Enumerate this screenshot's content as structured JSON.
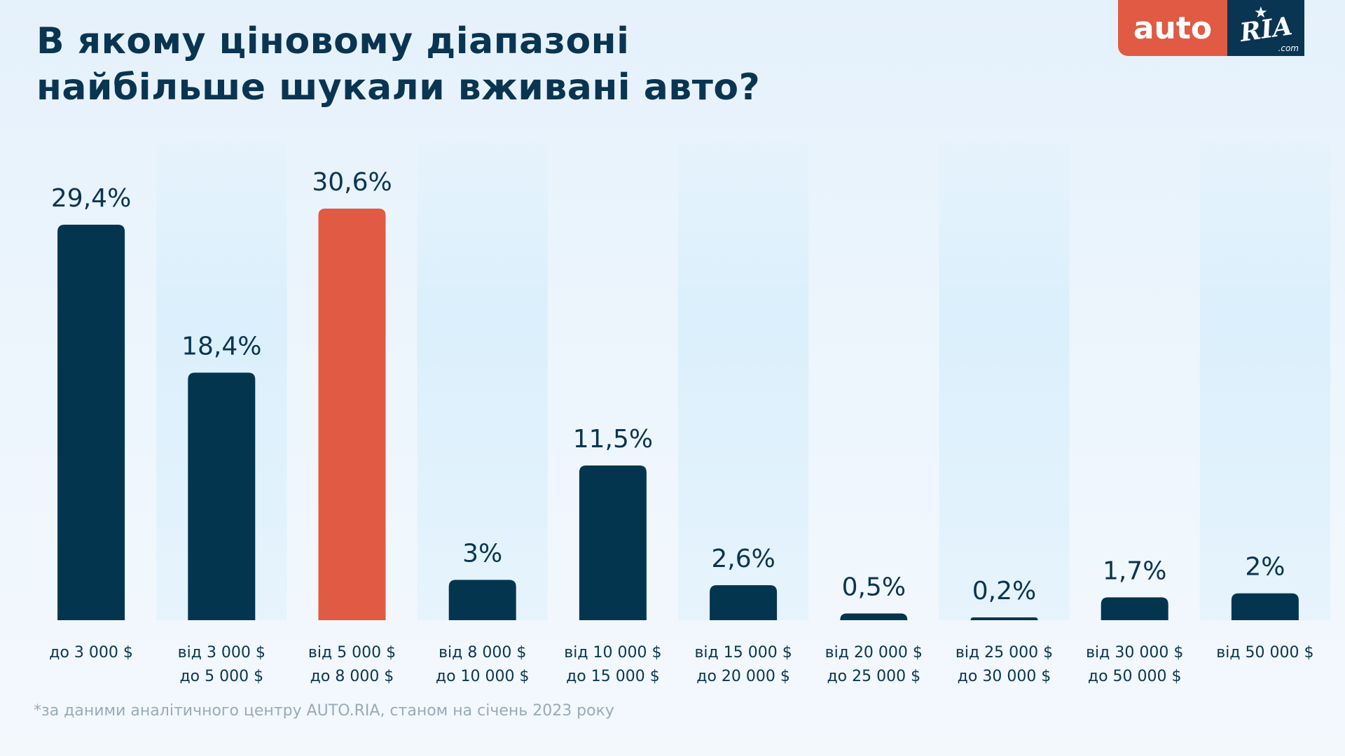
{
  "header": {
    "title_line1": "В якому ціновому діапазоні",
    "title_line2": "найбільше шукали вживані авто?"
  },
  "logo": {
    "auto_text": "auto",
    "ria_text": "RIA",
    "ria_suffix": ".com",
    "auto_color": "#e05a44",
    "ria_color": "#0a3552"
  },
  "footnote": "*за даними аналітичного центру AUTO.RIA, станом на січень 2023 року",
  "colors": {
    "bar": "#03354f",
    "highlight": "#e05a44",
    "text": "#0a3552",
    "band": "#d9effc"
  },
  "chart_data": {
    "type": "bar",
    "title": "В якому ціновому діапазоні найбільше шукали вживані авто?",
    "xlabel": "",
    "ylabel": "",
    "ylim": [
      0,
      30.6
    ],
    "grid": false,
    "legend": "none",
    "highlight_index": 2,
    "categories": [
      [
        "до 3 000 $"
      ],
      [
        "від 3 000 $",
        "до 5 000 $"
      ],
      [
        "від 5 000 $",
        "до 8 000 $"
      ],
      [
        "від 8 000 $",
        "до 10 000 $"
      ],
      [
        "від 10 000 $",
        "до 15 000 $"
      ],
      [
        "від 15 000 $",
        "до 20 000 $"
      ],
      [
        "від 20 000 $",
        "до 25 000 $"
      ],
      [
        "від 25 000 $",
        "до 30 000 $"
      ],
      [
        "від 30 000 $",
        "до 50 000 $"
      ],
      [
        "від 50 000 $"
      ]
    ],
    "values": [
      29.4,
      18.4,
      30.6,
      3,
      11.5,
      2.6,
      0.5,
      0.2,
      1.7,
      2
    ],
    "value_labels": [
      "29,4%",
      "18,4%",
      "30,6%",
      "3%",
      "11,5%",
      "2,6%",
      "0,5%",
      "0,2%",
      "1,7%",
      "2%"
    ]
  }
}
